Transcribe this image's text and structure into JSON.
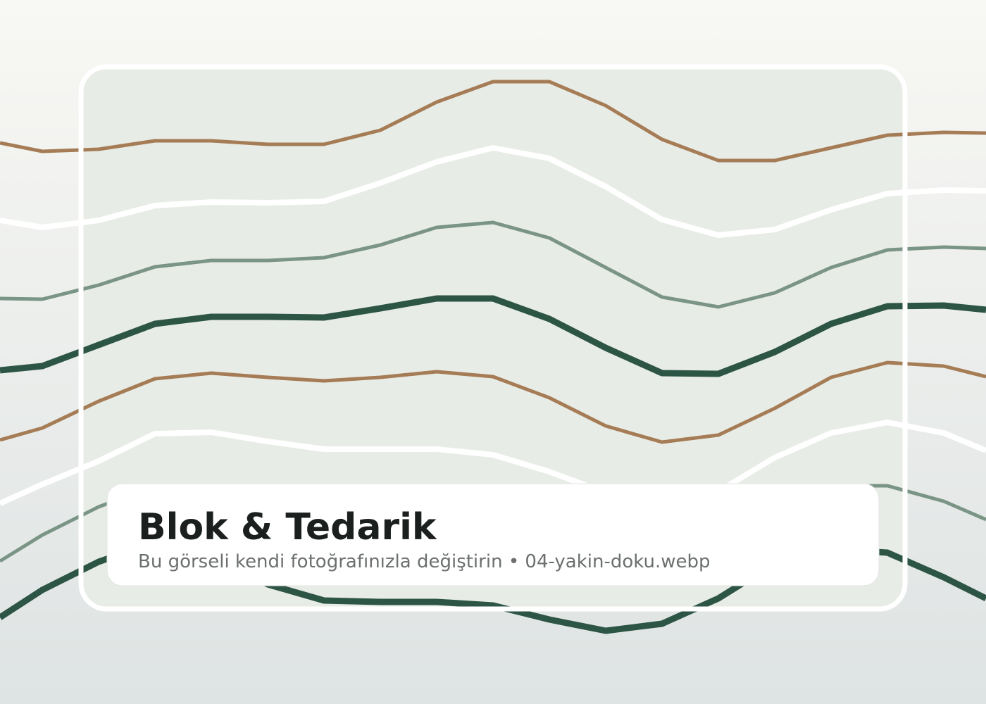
{
  "title": "Blok & Tedarik",
  "subtitle": "Bu görseli kendi fotoğrafınızla değiştirin • 04-yakin-doku.webp"
}
